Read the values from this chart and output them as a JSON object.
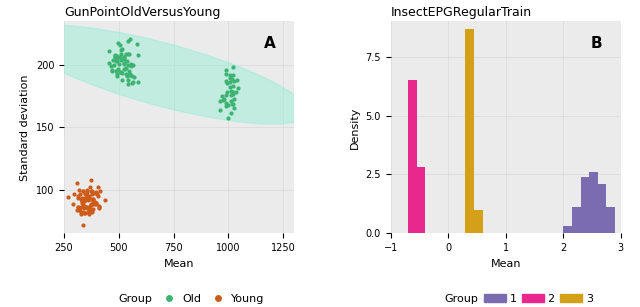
{
  "panel_a": {
    "title": "GunPointOldVersusYoung",
    "xlabel": "Mean",
    "ylabel": "Standard deviation",
    "label": "A",
    "old_color": "#3CB371",
    "young_color": "#CD5C1A",
    "ellipse_color": "#90EED4",
    "xlim": [
      250,
      1300
    ],
    "ylim": [
      65,
      235
    ],
    "xticks": [
      250,
      500,
      750,
      1000,
      1250
    ],
    "yticks": [
      100,
      150,
      200
    ]
  },
  "panel_b": {
    "title": "InsectEPGRegularTrain",
    "xlabel": "Mean",
    "ylabel": "Density",
    "label": "B",
    "color_1": "#7B6CB0",
    "color_2": "#E8288C",
    "color_3": "#D4A017",
    "xlim": [
      -1,
      3
    ],
    "ylim": [
      0,
      9
    ],
    "xticks": [
      -1,
      0,
      1,
      2,
      3
    ],
    "yticks": [
      0.0,
      2.5,
      5.0,
      7.5
    ]
  },
  "background_color": "#ffffff",
  "grid_color": "#d9d9d9",
  "panel_bg": "#ebebeb"
}
